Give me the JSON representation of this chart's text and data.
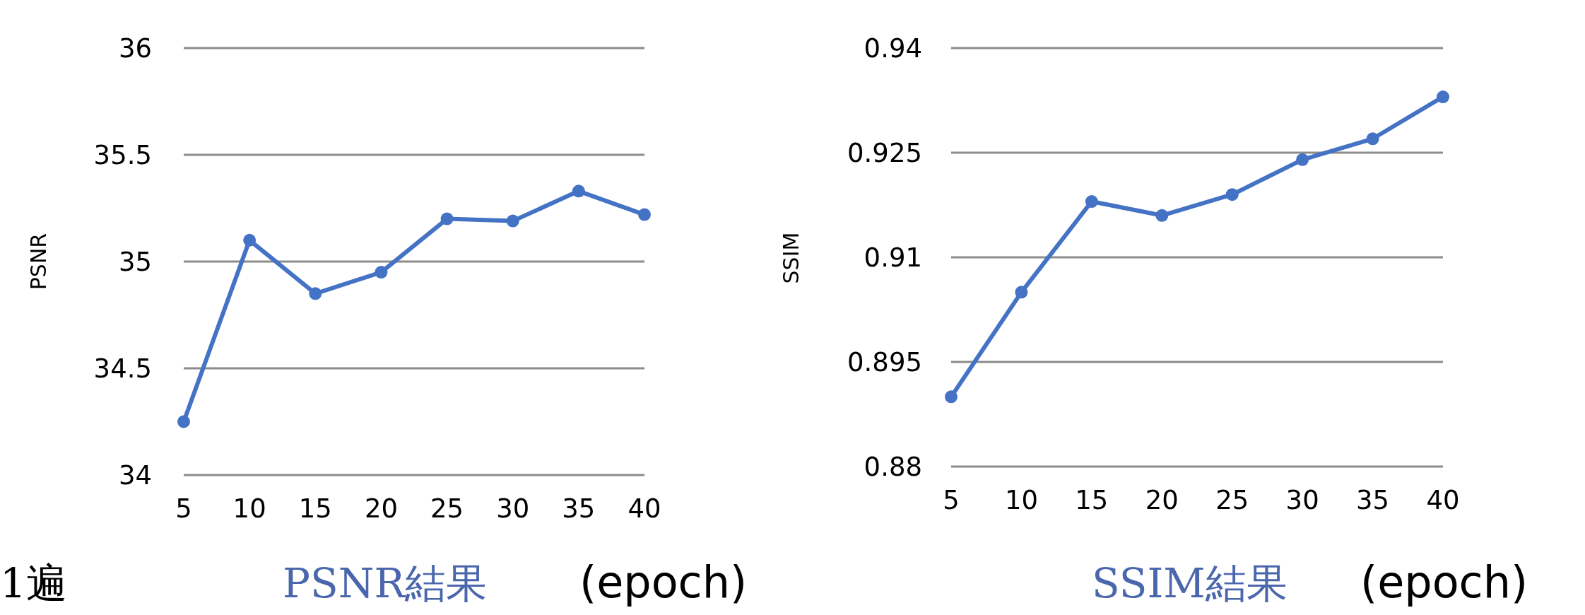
{
  "chart_data": [
    {
      "type": "line",
      "xlabel": "(epoch)",
      "ylabel": "PSNR",
      "annotations": [
        "PSNR結果",
        "1遍"
      ],
      "categories": [
        "5",
        "10",
        "15",
        "20",
        "25",
        "30",
        "35",
        "40"
      ],
      "series": [
        {
          "color": "#4472c4",
          "values": [
            34.25,
            35.1,
            34.85,
            34.95,
            35.2,
            35.19,
            35.33,
            35.22
          ]
        }
      ],
      "ylim": [
        34,
        36
      ],
      "yticks": [
        34,
        34.5,
        35,
        35.5,
        36
      ],
      "grid": "y",
      "marker": "circle",
      "line_style": "solid"
    },
    {
      "type": "line",
      "xlabel": "(epoch)",
      "ylabel": "SSIM",
      "annotations": [
        "SSIM結果"
      ],
      "categories": [
        "5",
        "10",
        "15",
        "20",
        "25",
        "30",
        "35",
        "40"
      ],
      "series": [
        {
          "color": "#4472c4",
          "values": [
            0.89,
            0.905,
            0.918,
            0.916,
            0.919,
            0.924,
            0.927,
            0.933
          ]
        }
      ],
      "ylim": [
        0.88,
        0.94
      ],
      "yticks": [
        0.88,
        0.895,
        0.91,
        0.925,
        0.94
      ],
      "grid": "y",
      "marker": "circle",
      "line_style": "solid"
    }
  ]
}
